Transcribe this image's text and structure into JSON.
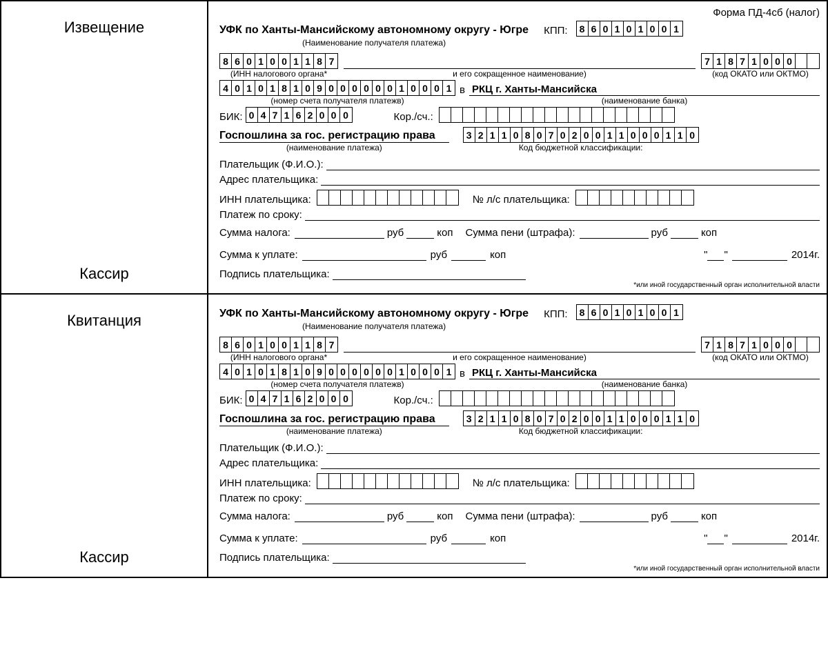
{
  "form_title": "Форма ПД-4сб (налог)",
  "year": "2014г.",
  "labels": {
    "notice": "Извещение",
    "receipt": "Квитанция",
    "cashier": "Кассир",
    "recipient": "УФК по Ханты-Мансийскому автономному округу - Югре",
    "recipient_hint": "(Наименование получателя платежа)",
    "kpp": "КПП:",
    "inn_hint": "(ИНН налогового органа*",
    "inn_hint2": "и его сокращенное наименование)",
    "okato_hint": "(код ОКАТО или ОКТМО)",
    "account_hint": "(номер счета получателя платежв)",
    "v": "в",
    "bank": "РКЦ г. Ханты-Мансийска",
    "bank_hint": "(наименование банка)",
    "bik": "БИК:",
    "korr": "Кор./сч.:",
    "payment_name": "Госпошлина за гос. регистрацию права",
    "payment_hint": "(наименование платежа)",
    "kbk_hint": "Код бюджетной классификации:",
    "payer": "Плательщик (Ф.И.О.):",
    "payer_addr": "Адрес плательщика:",
    "payer_inn": "ИНН плательщика:",
    "ls": "№ л/с плательщика:",
    "due": "Платеж по сроку:",
    "tax_sum": "Сумма налога:",
    "penalty": "Сумма пени (штрафа):",
    "rub": "руб",
    "kop": "коп",
    "total": "Сумма к уплате:",
    "sign": "Подпись плательщика:",
    "quote": "\"",
    "footnote": "*или иной государственный орган исполнительной власти"
  },
  "kpp_digits": [
    "8",
    "6",
    "0",
    "1",
    "0",
    "1",
    "0",
    "0",
    "1"
  ],
  "inn_digits": [
    "8",
    "6",
    "0",
    "1",
    "0",
    "0",
    "1",
    "1",
    "8",
    "7"
  ],
  "okato_digits": [
    "7",
    "1",
    "8",
    "7",
    "1",
    "0",
    "0",
    "0",
    "",
    ""
  ],
  "account_digits": [
    "4",
    "0",
    "1",
    "0",
    "1",
    "8",
    "1",
    "0",
    "9",
    "0",
    "0",
    "0",
    "0",
    "0",
    "0",
    "1",
    "0",
    "0",
    "0",
    "1"
  ],
  "bik_digits": [
    "0",
    "4",
    "7",
    "1",
    "6",
    "2",
    "0",
    "0",
    "0"
  ],
  "korr_digits": [
    "",
    "",
    "",
    "",
    "",
    "",
    "",
    "",
    "",
    "",
    "",
    "",
    "",
    "",
    "",
    "",
    "",
    "",
    "",
    ""
  ],
  "kbk_digits": [
    "3",
    "2",
    "1",
    "1",
    "0",
    "8",
    "0",
    "7",
    "0",
    "2",
    "0",
    "0",
    "1",
    "1",
    "0",
    "0",
    "0",
    "1",
    "1",
    "0"
  ],
  "payer_inn_empty": [
    "",
    "",
    "",
    "",
    "",
    "",
    "",
    "",
    "",
    "",
    "",
    ""
  ],
  "ls_empty": [
    "",
    "",
    "",
    "",
    "",
    "",
    "",
    "",
    "",
    ""
  ]
}
